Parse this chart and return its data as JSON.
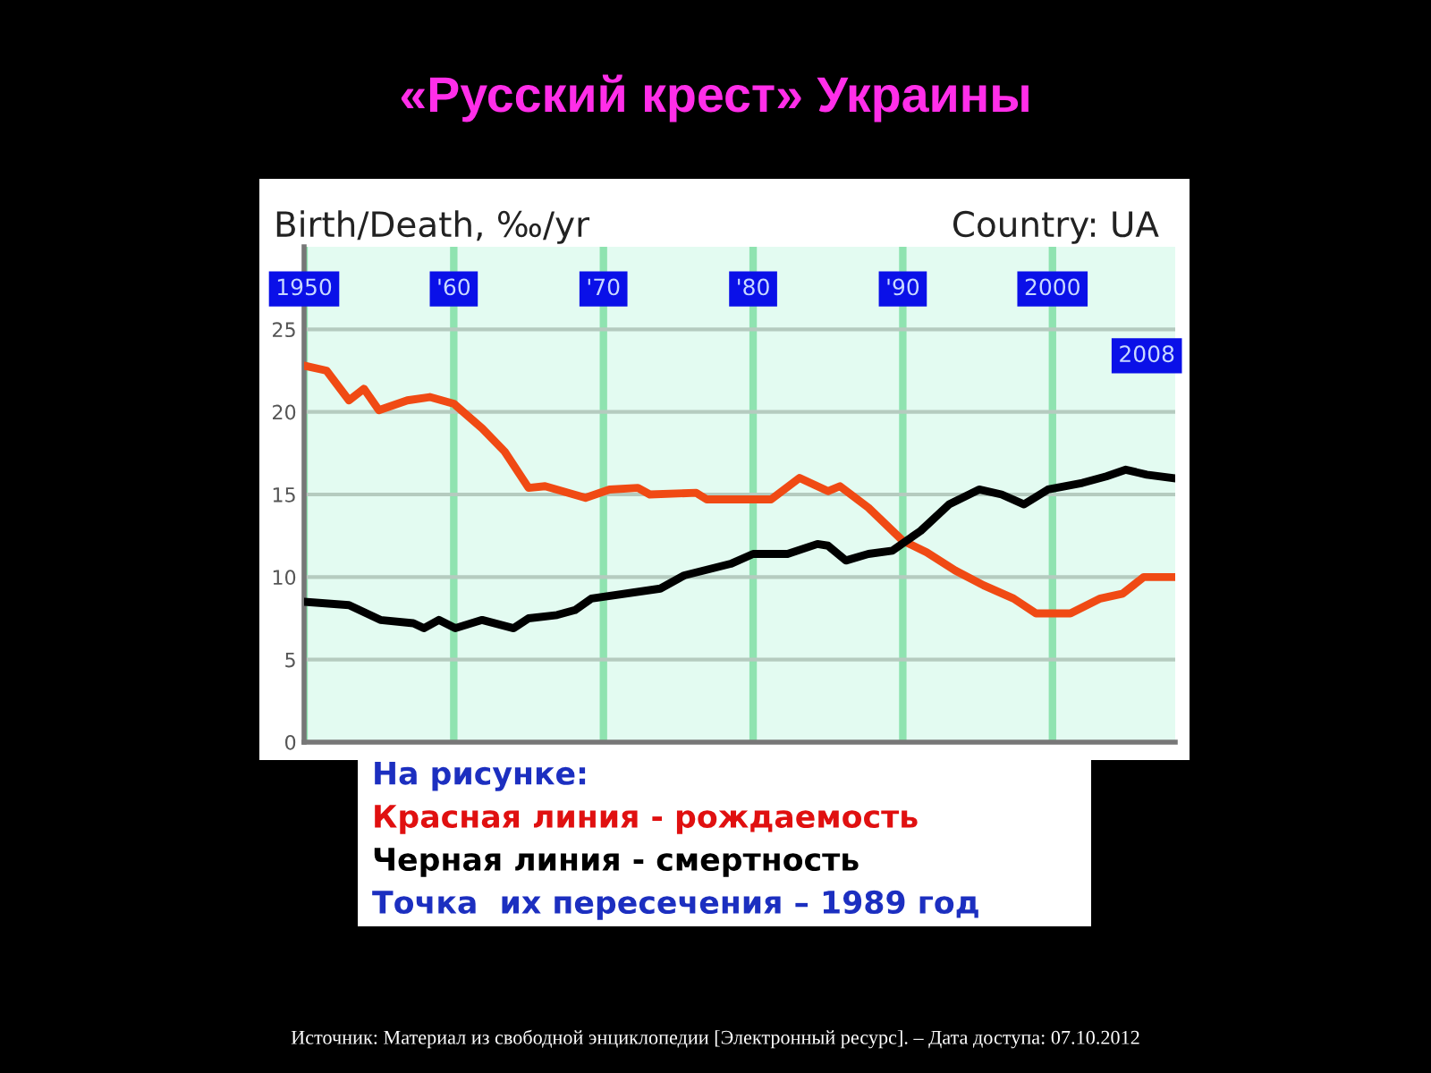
{
  "chart_data": {
    "type": "line",
    "title": "«Русский крест» Украины",
    "ylabel": "Birth/Death, ‰/yr",
    "subtitle": "Country: UA",
    "x": [
      1950,
      1951.5,
      1953,
      1954,
      1955,
      1956.9,
      1958.4,
      1960,
      1961.9,
      1963.4,
      1965,
      1966.1,
      1968.8,
      1970.4,
      1972.3,
      1973.1,
      1976.2,
      1976.9,
      1981.2,
      1983.1,
      1985,
      1985.8,
      1987.7,
      1990,
      1991.6,
      1993.5,
      1995.4,
      1997.4,
      1998.9,
      2001.2,
      2003.2,
      2004.7,
      2006.1,
      2008
    ],
    "series": [
      {
        "color": "#f04a14",
        "values": [
          22.8,
          22.5,
          20.7,
          21.4,
          20.1,
          20.7,
          20.9,
          20.5,
          19.0,
          17.6,
          15.4,
          15.5,
          14.8,
          15.3,
          15.4,
          15.0,
          15.1,
          14.7,
          14.7,
          16.0,
          15.2,
          15.5,
          14.2,
          12.2,
          11.5,
          10.4,
          9.5,
          8.7,
          7.8,
          7.8,
          8.7,
          9.0,
          10.0,
          10.0
        ]
      },
      {
        "color": "#000000",
        "x": [
          1950,
          1953,
          1955.1,
          1957.3,
          1958,
          1959,
          1960.1,
          1961.9,
          1964,
          1965,
          1966.9,
          1968.1,
          1969.2,
          1973.8,
          1975.4,
          1978.5,
          1980,
          1982.3,
          1984.3,
          1985,
          1986.2,
          1987.7,
          1989.3,
          1991.2,
          1993.1,
          1995.1,
          1996.6,
          1998.1,
          1999.7,
          2002,
          2003.6,
          2004.9,
          2006.3,
          2008
        ],
        "values": [
          8.5,
          8.3,
          7.4,
          7.2,
          6.9,
          7.4,
          6.9,
          7.4,
          6.9,
          7.5,
          7.7,
          8.0,
          8.7,
          9.3,
          10.1,
          10.8,
          11.4,
          11.4,
          12.0,
          11.9,
          11.0,
          11.4,
          11.6,
          12.8,
          14.4,
          15.3,
          15.0,
          14.4,
          15.3,
          15.7,
          16.1,
          16.5,
          16.2,
          16.0
        ]
      }
    ],
    "xlim": [
      1950,
      2008.2
    ],
    "xticks": [
      1950,
      {
        "value": 1960,
        "label": "'60"
      },
      {
        "value": 1970,
        "label": "'70"
      },
      {
        "value": 1980,
        "label": "'80"
      },
      {
        "value": 1990,
        "label": "'90"
      },
      2000
    ],
    "ylim": [
      0,
      30
    ],
    "yticks": [
      0,
      5,
      10,
      15,
      20,
      25
    ],
    "grid": true,
    "line_style": "solid",
    "marker": "none",
    "annotations": [
      "2008",
      "На рисунке:",
      "Красная линия - рождаемость",
      "Черная линия - смертность",
      "Точка  их пересечения – 1989 год",
      "Источник: Материал из свободной энциклопедии [Электронный ресурс]. – Дата доступа: 07.10.2012"
    ]
  }
}
